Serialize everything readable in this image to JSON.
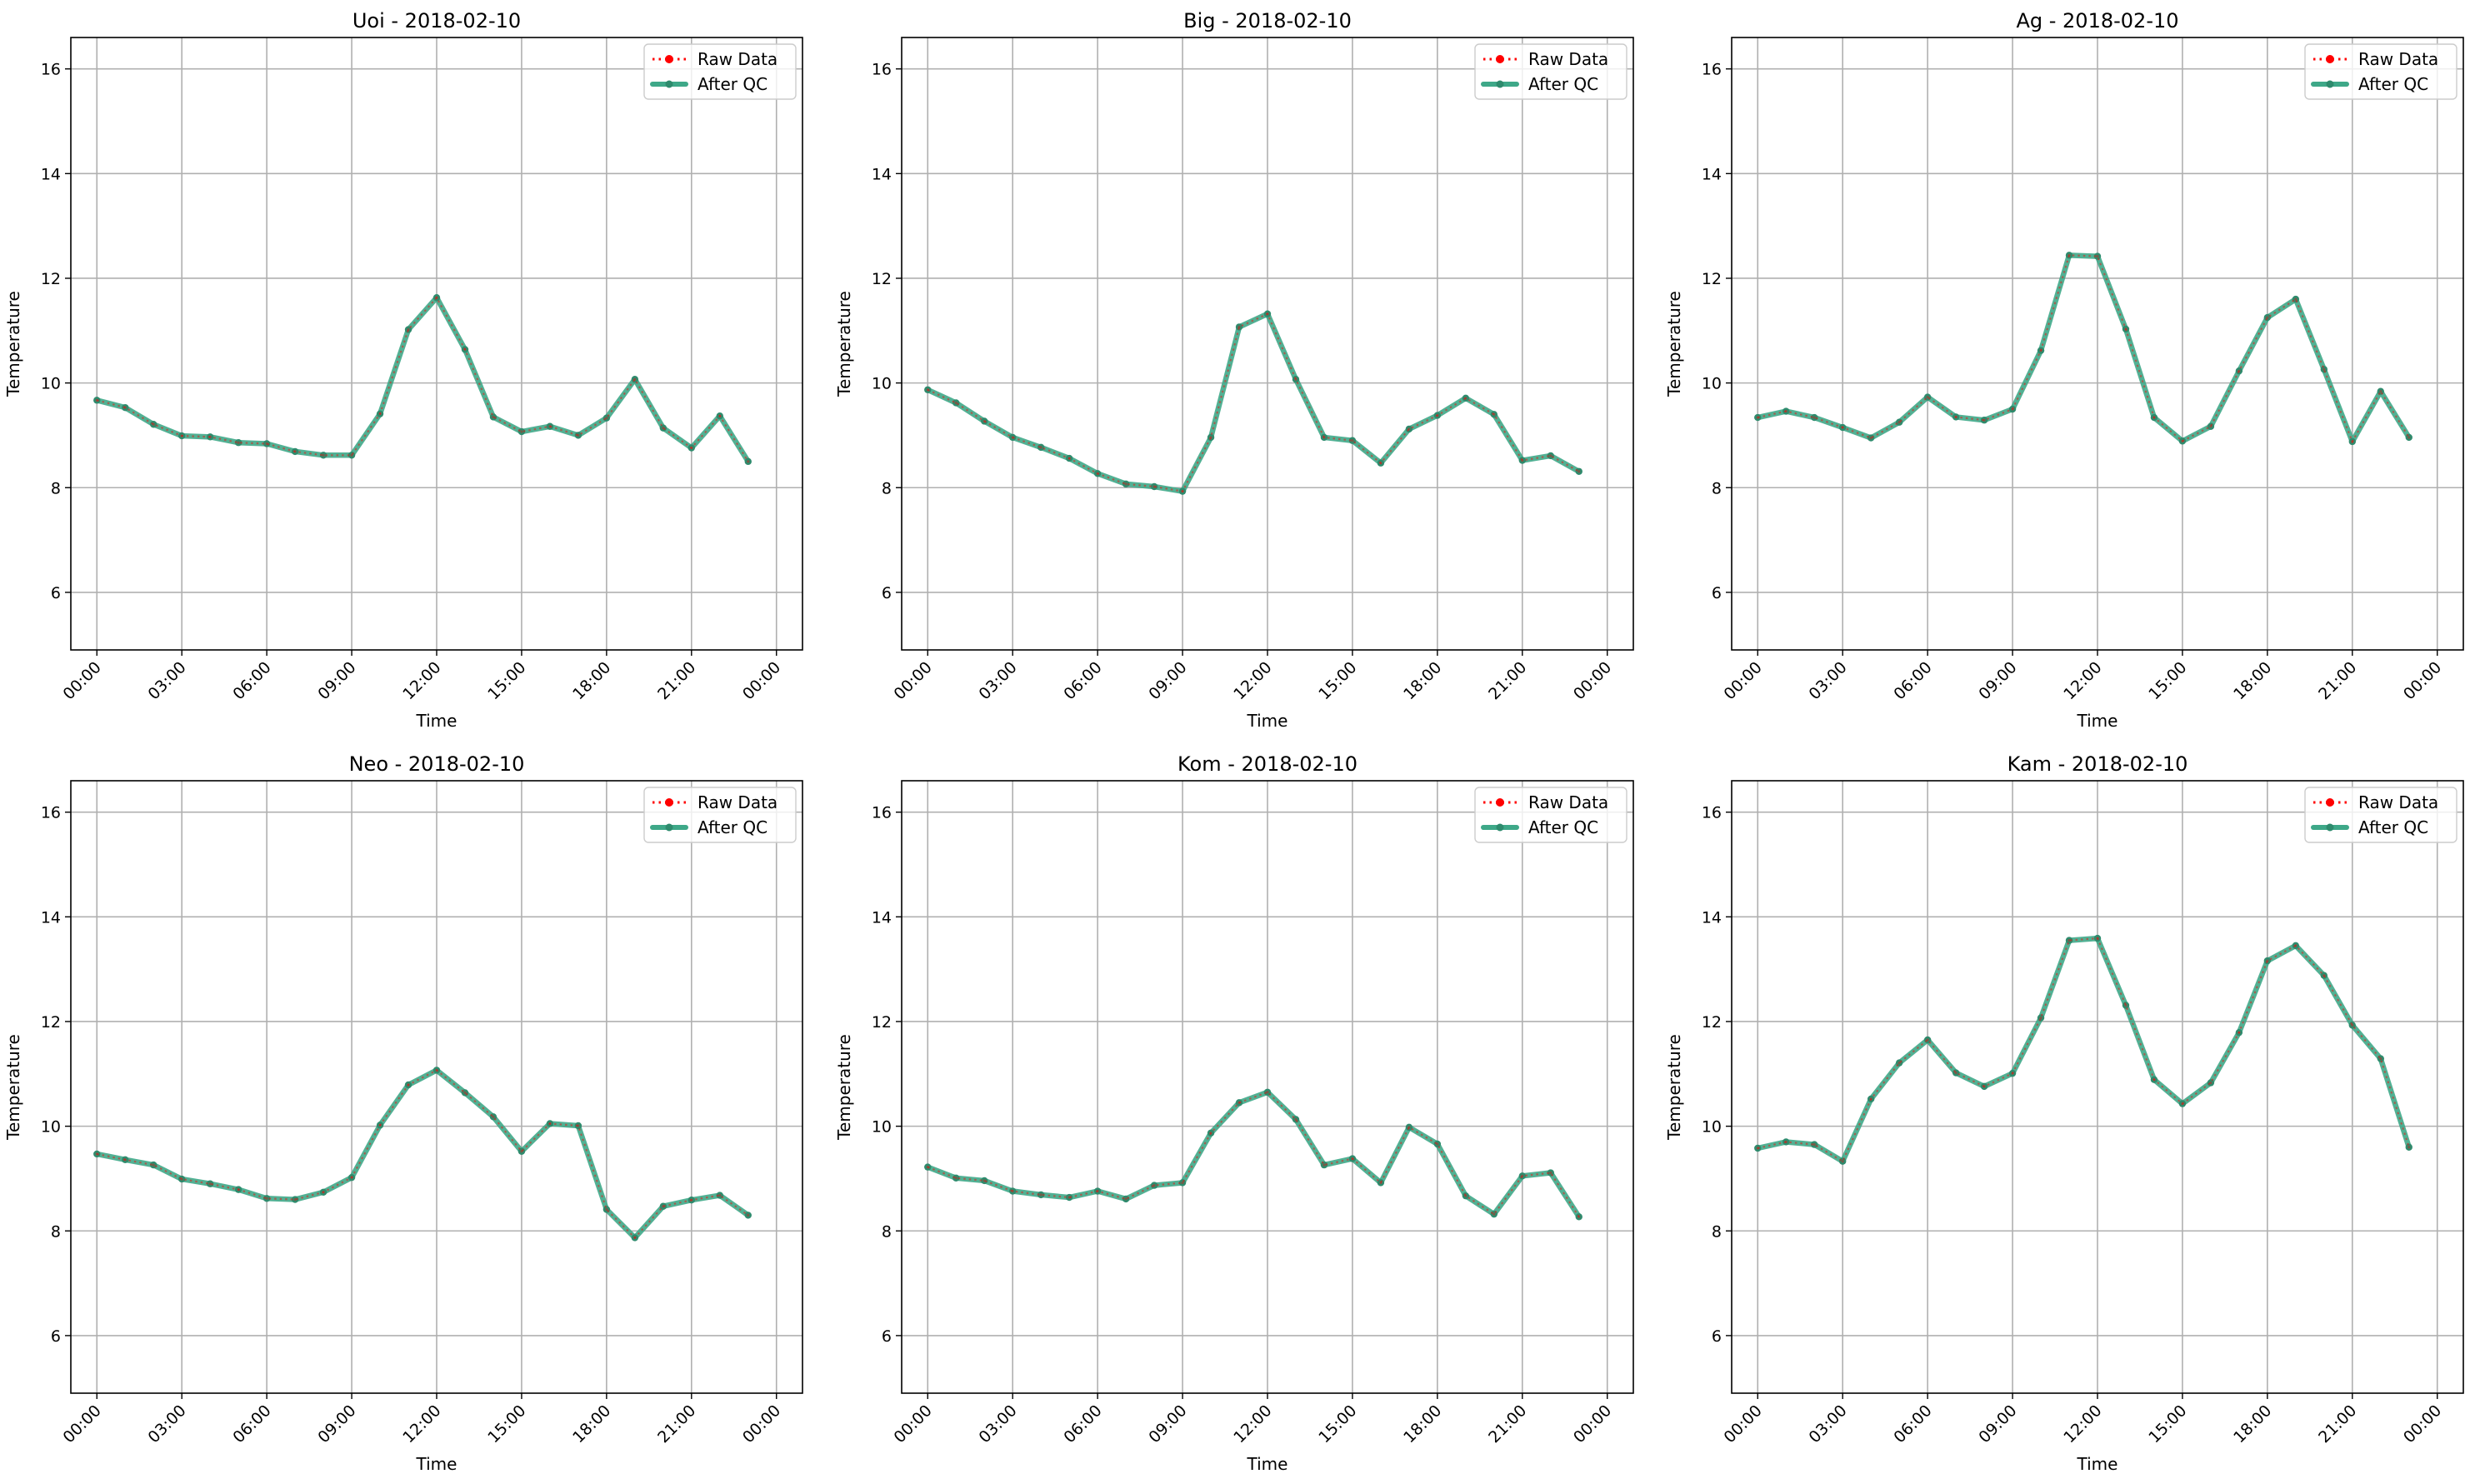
{
  "colors": {
    "raw": "#ff0000",
    "qc": "#2e8b6d",
    "qc_fill": "#3ea888",
    "grid": "#b0b0b0",
    "axes": "#000000"
  },
  "legend": {
    "position": "top-right",
    "items": [
      "Raw Data",
      "After QC"
    ]
  },
  "chart_data": [
    {
      "type": "line",
      "title": "Uoi - 2018-02-10",
      "xlabel": "Time",
      "ylabel": "Temperature",
      "x_hours": [
        0,
        1,
        2,
        3,
        4,
        5,
        6,
        7,
        8,
        9,
        10,
        11,
        12,
        13,
        14,
        15,
        16,
        17,
        18,
        19,
        20,
        21,
        22,
        23
      ],
      "x_ticks": [
        "00:00",
        "03:00",
        "06:00",
        "09:00",
        "12:00",
        "15:00",
        "18:00",
        "21:00",
        "00:00"
      ],
      "y_ticks": [
        "6",
        "8",
        "10",
        "12",
        "14",
        "16"
      ],
      "xlim": [
        "2018-02-10 00:00",
        "2018-02-11 00:00"
      ],
      "ylim": [
        4.9,
        16.6
      ],
      "grid": true,
      "series": [
        {
          "name": "Raw Data",
          "values": [
            9.67,
            9.53,
            9.21,
            8.99,
            8.97,
            8.86,
            8.84,
            8.69,
            8.62,
            8.62,
            9.41,
            11.02,
            11.63,
            10.64,
            9.35,
            9.07,
            9.17,
            9.0,
            9.33,
            10.07,
            9.14,
            8.76,
            9.37,
            8.5
          ]
        },
        {
          "name": "After QC",
          "values": [
            9.67,
            9.53,
            9.21,
            8.99,
            8.97,
            8.86,
            8.84,
            8.69,
            8.62,
            8.62,
            9.41,
            11.02,
            11.63,
            10.64,
            9.35,
            9.07,
            9.17,
            9.0,
            9.33,
            10.07,
            9.14,
            8.76,
            9.37,
            8.5
          ]
        }
      ]
    },
    {
      "type": "line",
      "title": "Big - 2018-02-10",
      "xlabel": "Time",
      "ylabel": "Temperature",
      "x_hours": [
        0,
        1,
        2,
        3,
        4,
        5,
        6,
        7,
        8,
        9,
        10,
        11,
        12,
        13,
        14,
        15,
        16,
        17,
        18,
        19,
        20,
        21,
        22,
        23
      ],
      "x_ticks": [
        "00:00",
        "03:00",
        "06:00",
        "09:00",
        "12:00",
        "15:00",
        "18:00",
        "21:00",
        "00:00"
      ],
      "y_ticks": [
        "6",
        "8",
        "10",
        "12",
        "14",
        "16"
      ],
      "xlim": [
        "2018-02-10 00:00",
        "2018-02-11 00:00"
      ],
      "ylim": [
        4.9,
        16.6
      ],
      "grid": true,
      "series": [
        {
          "name": "Raw Data",
          "values": [
            9.87,
            9.62,
            9.27,
            8.96,
            8.77,
            8.56,
            8.27,
            8.07,
            8.02,
            7.93,
            8.96,
            11.07,
            11.32,
            10.07,
            8.96,
            8.9,
            8.47,
            9.12,
            9.38,
            9.71,
            9.4,
            8.52,
            8.61,
            8.31
          ]
        },
        {
          "name": "After QC",
          "values": [
            9.87,
            9.62,
            9.27,
            8.96,
            8.77,
            8.56,
            8.27,
            8.07,
            8.02,
            7.93,
            8.96,
            11.07,
            11.32,
            10.07,
            8.96,
            8.9,
            8.47,
            9.12,
            9.38,
            9.71,
            9.4,
            8.52,
            8.61,
            8.31
          ]
        }
      ]
    },
    {
      "type": "line",
      "title": "Ag - 2018-02-10",
      "xlabel": "Time",
      "ylabel": "Temperature",
      "x_hours": [
        0,
        1,
        2,
        3,
        4,
        5,
        6,
        7,
        8,
        9,
        10,
        11,
        12,
        13,
        14,
        15,
        16,
        17,
        18,
        19,
        20,
        21,
        22,
        23
      ],
      "x_ticks": [
        "00:00",
        "03:00",
        "06:00",
        "09:00",
        "12:00",
        "15:00",
        "18:00",
        "21:00",
        "00:00"
      ],
      "y_ticks": [
        "6",
        "8",
        "10",
        "12",
        "14",
        "16"
      ],
      "xlim": [
        "2018-02-10 00:00",
        "2018-02-11 00:00"
      ],
      "ylim": [
        4.9,
        16.6
      ],
      "grid": true,
      "series": [
        {
          "name": "Raw Data",
          "values": [
            9.34,
            9.46,
            9.34,
            9.15,
            8.95,
            9.25,
            9.73,
            9.35,
            9.29,
            9.5,
            10.62,
            12.44,
            12.42,
            11.03,
            9.34,
            8.89,
            9.17,
            10.23,
            11.25,
            11.6,
            10.26,
            8.88,
            9.84,
            8.96
          ]
        },
        {
          "name": "After QC",
          "values": [
            9.34,
            9.46,
            9.34,
            9.15,
            8.95,
            9.25,
            9.73,
            9.35,
            9.29,
            9.5,
            10.62,
            12.44,
            12.42,
            11.03,
            9.34,
            8.89,
            9.17,
            10.23,
            11.25,
            11.6,
            10.26,
            8.88,
            9.84,
            8.96
          ]
        }
      ]
    },
    {
      "type": "line",
      "title": "Neo - 2018-02-10",
      "xlabel": "Time",
      "ylabel": "Temperature",
      "x_hours": [
        0,
        1,
        2,
        3,
        4,
        5,
        6,
        7,
        8,
        9,
        10,
        11,
        12,
        13,
        14,
        15,
        16,
        17,
        18,
        19,
        20,
        21,
        22,
        23
      ],
      "x_ticks": [
        "00:00",
        "03:00",
        "06:00",
        "09:00",
        "12:00",
        "15:00",
        "18:00",
        "21:00",
        "00:00"
      ],
      "y_ticks": [
        "6",
        "8",
        "10",
        "12",
        "14",
        "16"
      ],
      "xlim": [
        "2018-02-10 00:00",
        "2018-02-11 00:00"
      ],
      "ylim": [
        4.9,
        16.6
      ],
      "grid": true,
      "series": [
        {
          "name": "Raw Data",
          "values": [
            9.47,
            9.36,
            9.26,
            8.99,
            8.9,
            8.79,
            8.62,
            8.6,
            8.74,
            9.02,
            10.02,
            10.79,
            11.07,
            10.64,
            10.18,
            9.52,
            10.05,
            10.01,
            8.41,
            7.87,
            8.47,
            8.59,
            8.68,
            8.3
          ]
        },
        {
          "name": "After QC",
          "values": [
            9.47,
            9.36,
            9.26,
            8.99,
            8.9,
            8.79,
            8.62,
            8.6,
            8.74,
            9.02,
            10.02,
            10.79,
            11.07,
            10.64,
            10.18,
            9.52,
            10.05,
            10.01,
            8.41,
            7.87,
            8.47,
            8.59,
            8.68,
            8.3
          ]
        }
      ]
    },
    {
      "type": "line",
      "title": "Kom - 2018-02-10",
      "xlabel": "Time",
      "ylabel": "Temperature",
      "x_hours": [
        0,
        1,
        2,
        3,
        4,
        5,
        6,
        7,
        8,
        9,
        10,
        11,
        12,
        13,
        14,
        15,
        16,
        17,
        18,
        19,
        20,
        21,
        22,
        23
      ],
      "x_ticks": [
        "00:00",
        "03:00",
        "06:00",
        "09:00",
        "12:00",
        "15:00",
        "18:00",
        "21:00",
        "00:00"
      ],
      "y_ticks": [
        "6",
        "8",
        "10",
        "12",
        "14",
        "16"
      ],
      "xlim": [
        "2018-02-10 00:00",
        "2018-02-11 00:00"
      ],
      "ylim": [
        4.9,
        16.6
      ],
      "grid": true,
      "series": [
        {
          "name": "Raw Data",
          "values": [
            9.22,
            9.01,
            8.96,
            8.76,
            8.69,
            8.64,
            8.76,
            8.61,
            8.87,
            8.92,
            9.87,
            10.45,
            10.65,
            10.13,
            9.26,
            9.38,
            8.92,
            9.98,
            9.66,
            8.67,
            8.32,
            9.05,
            9.11,
            8.27
          ]
        },
        {
          "name": "After QC",
          "values": [
            9.22,
            9.01,
            8.96,
            8.76,
            8.69,
            8.64,
            8.76,
            8.61,
            8.87,
            8.92,
            9.87,
            10.45,
            10.65,
            10.13,
            9.26,
            9.38,
            8.92,
            9.98,
            9.66,
            8.67,
            8.32,
            9.05,
            9.11,
            8.27
          ]
        }
      ]
    },
    {
      "type": "line",
      "title": "Kam - 2018-02-10",
      "xlabel": "Time",
      "ylabel": "Temperature",
      "x_hours": [
        0,
        1,
        2,
        3,
        4,
        5,
        6,
        7,
        8,
        9,
        10,
        11,
        12,
        13,
        14,
        15,
        16,
        17,
        18,
        19,
        20,
        21,
        22,
        23
      ],
      "x_ticks": [
        "00:00",
        "03:00",
        "06:00",
        "09:00",
        "12:00",
        "15:00",
        "18:00",
        "21:00",
        "00:00"
      ],
      "y_ticks": [
        "6",
        "8",
        "10",
        "12",
        "14",
        "16"
      ],
      "xlim": [
        "2018-02-10 00:00",
        "2018-02-11 00:00"
      ],
      "ylim": [
        4.9,
        16.6
      ],
      "grid": true,
      "series": [
        {
          "name": "Raw Data",
          "values": [
            9.58,
            9.7,
            9.65,
            9.33,
            10.52,
            11.21,
            11.65,
            11.02,
            10.76,
            11.01,
            12.07,
            13.55,
            13.59,
            12.31,
            10.89,
            10.43,
            10.83,
            11.79,
            13.16,
            13.45,
            12.88,
            11.93,
            11.29,
            9.6
          ]
        },
        {
          "name": "After QC",
          "values": [
            9.58,
            9.7,
            9.65,
            9.33,
            10.52,
            11.21,
            11.65,
            11.02,
            10.76,
            11.01,
            12.07,
            13.55,
            13.59,
            12.31,
            10.89,
            10.43,
            10.83,
            11.79,
            13.16,
            13.45,
            12.88,
            11.93,
            11.29,
            9.6
          ]
        }
      ]
    }
  ]
}
